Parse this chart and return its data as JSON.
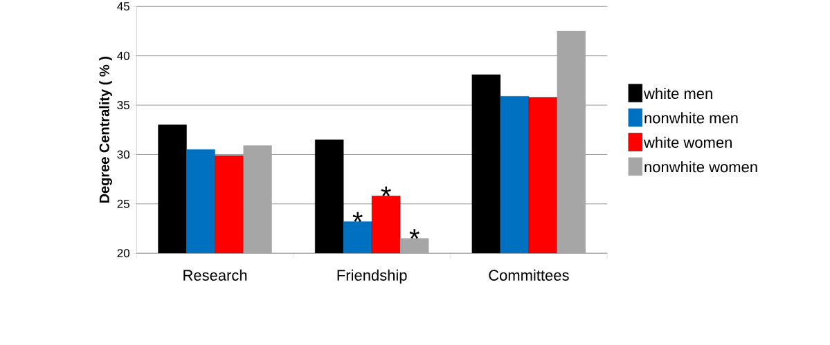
{
  "chart_data": {
    "type": "bar",
    "ylabel": "Degree Centrality ( % )",
    "categories": [
      "Research",
      "Friendship",
      "Committees"
    ],
    "series": [
      {
        "name": "white men",
        "color": "#000000",
        "values": [
          33.0,
          31.5,
          38.1
        ]
      },
      {
        "name": "nonwhite men",
        "color": "#0070c0",
        "values": [
          30.5,
          23.2,
          35.9
        ]
      },
      {
        "name": "white women",
        "color": "#ff0000",
        "values": [
          29.9,
          25.8,
          35.8
        ]
      },
      {
        "name": "nonwhite women",
        "color": "#a6a6a6",
        "values": [
          30.9,
          21.5,
          42.5
        ]
      }
    ],
    "ylim": [
      20,
      45
    ],
    "yticks": [
      20,
      25,
      30,
      35,
      40,
      45
    ],
    "grid": "y",
    "legend": "right",
    "annotations": [
      {
        "text": "*",
        "x": "Friendship",
        "y": 23.2
      },
      {
        "text": "*",
        "x": "Friendship",
        "y": 25.8
      },
      {
        "text": "*",
        "x": "Friendship",
        "y": 21.5
      }
    ]
  }
}
